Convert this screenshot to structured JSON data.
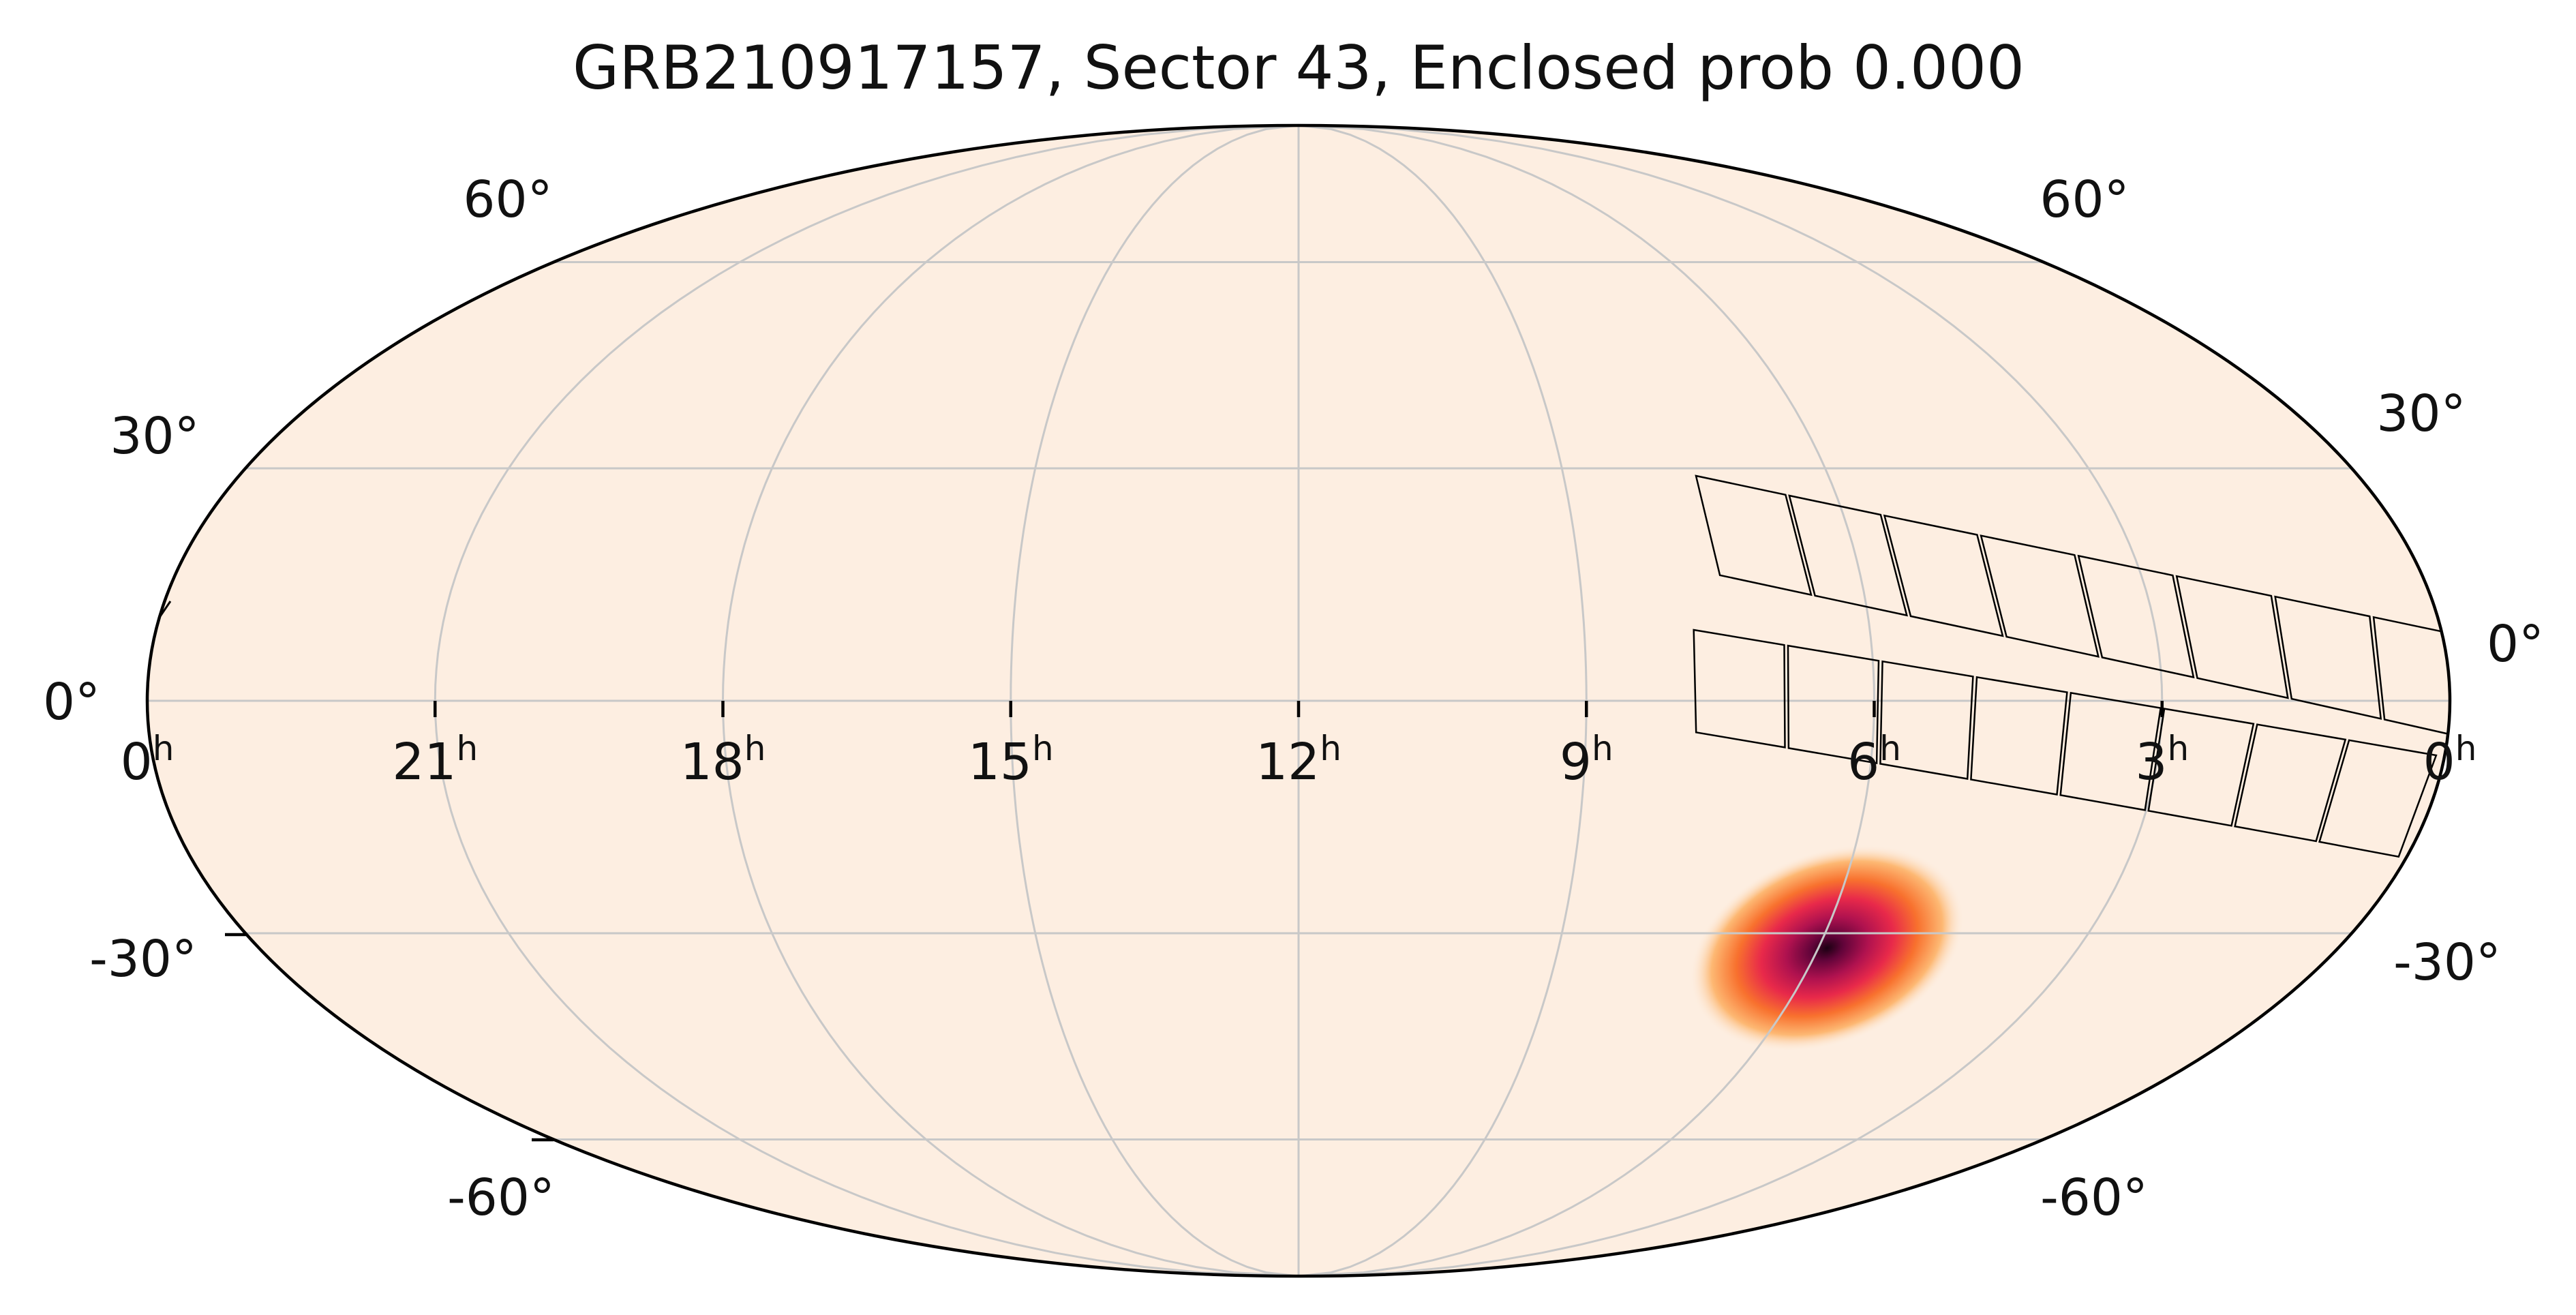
{
  "title": "GRB210917157, Sector 43, Enclosed prob 0.000",
  "projection": "mollweide",
  "background_color": "#fdeee1",
  "grid_color": "#c8c8c8",
  "outline_color": "#000000",
  "meridians_hours": [
    0,
    3,
    6,
    9,
    12,
    15,
    18,
    21,
    24
  ],
  "parallels_deg": [
    -60,
    -30,
    0,
    30,
    60
  ],
  "ra_tick_labels": [
    {
      "ra": 0,
      "hour": "0",
      "unit": "h",
      "side": "left"
    },
    {
      "ra": 21,
      "hour": "21",
      "unit": "h"
    },
    {
      "ra": 18,
      "hour": "18",
      "unit": "h"
    },
    {
      "ra": 15,
      "hour": "15",
      "unit": "h"
    },
    {
      "ra": 12,
      "hour": "12",
      "unit": "h"
    },
    {
      "ra": 9,
      "hour": "9",
      "unit": "h"
    },
    {
      "ra": 6,
      "hour": "6",
      "unit": "h"
    },
    {
      "ra": 3,
      "hour": "3",
      "unit": "h"
    },
    {
      "ra": 0,
      "hour": "0",
      "unit": "h",
      "side": "right"
    }
  ],
  "dec_labels": {
    "60": "60°",
    "30": "30°",
    "0": "0°",
    "-30": "-30°",
    "-60": "-60°"
  },
  "probability_blob": {
    "ra_hours": 5.9,
    "dec_deg": -32,
    "colors": [
      "#fdeee1",
      "#fdb873",
      "#f8712e",
      "#e8294a",
      "#b0124f",
      "#62043a",
      "#1c0012"
    ]
  },
  "sector_footprint": {
    "sector": 43,
    "rows": 2,
    "cols_per_row": 8,
    "ra_start_hours": 7.5,
    "ra_end_hours": -0.3,
    "dec_top_start": 29,
    "dec_top_end": 8,
    "dec_bottom_start": 9,
    "dec_bottom_end": -7
  }
}
